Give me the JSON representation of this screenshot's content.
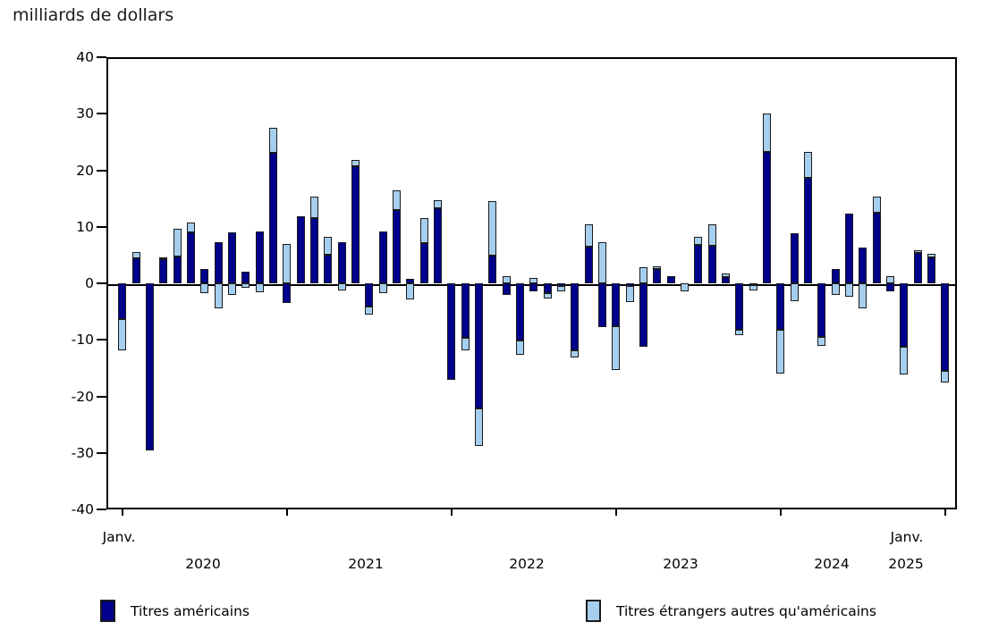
{
  "title": "milliards de dollars",
  "y_axis": {
    "ticks": [
      "40",
      "30",
      "20",
      "10",
      "0",
      "-10",
      "-20",
      "-30",
      "-40"
    ]
  },
  "x_axis": {
    "first_label": "Janv.",
    "last_label": "Janv.",
    "last_year": "2025",
    "years": [
      "2020",
      "2021",
      "2022",
      "2023",
      "2024"
    ]
  },
  "legend": [
    {
      "label": "Titres américains",
      "color": "#00008b"
    },
    {
      "label": "Titres étrangers autres qu'américains",
      "color": "#a6cfef"
    }
  ],
  "chart_data": {
    "type": "bar",
    "stacked": true,
    "title": "milliards de dollars",
    "ylabel": "milliards de dollars",
    "ylim": [
      -40,
      40
    ],
    "ytick_step": 10,
    "grid": false,
    "legend_position": "bottom",
    "categories": [
      "2020-01",
      "2020-02",
      "2020-03",
      "2020-04",
      "2020-05",
      "2020-06",
      "2020-07",
      "2020-08",
      "2020-09",
      "2020-10",
      "2020-11",
      "2020-12",
      "2021-01",
      "2021-02",
      "2021-03",
      "2021-04",
      "2021-05",
      "2021-06",
      "2021-07",
      "2021-08",
      "2021-09",
      "2021-10",
      "2021-11",
      "2021-12",
      "2022-01",
      "2022-02",
      "2022-03",
      "2022-04",
      "2022-05",
      "2022-06",
      "2022-07",
      "2022-08",
      "2022-09",
      "2022-10",
      "2022-11",
      "2022-12",
      "2023-01",
      "2023-02",
      "2023-03",
      "2023-04",
      "2023-05",
      "2023-06",
      "2023-07",
      "2023-08",
      "2023-09",
      "2023-10",
      "2023-11",
      "2023-12",
      "2024-01",
      "2024-02",
      "2024-03",
      "2024-04",
      "2024-05",
      "2024-06",
      "2024-07",
      "2024-08",
      "2024-09",
      "2024-10",
      "2024-11",
      "2024-12",
      "2025-01"
    ],
    "series": [
      {
        "name": "Titres américains",
        "color": "#00008b",
        "values": [
          -6.3,
          4.4,
          -29.5,
          4.2,
          4.7,
          9.0,
          2.6,
          7.3,
          9.0,
          2.1,
          9.2,
          23.1,
          -3.5,
          11.8,
          11.6,
          5.0,
          7.3,
          20.7,
          -4.1,
          9.2,
          12.9,
          0.8,
          7.1,
          13.3,
          -17.1,
          -9.7,
          -22.2,
          4.9,
          -2.1,
          -10.1,
          -1.5,
          -1.7,
          -0.5,
          -11.9,
          6.5,
          -7.8,
          -7.6,
          -0.5,
          -11.3,
          2.5,
          1.3,
          0.0,
          6.8,
          6.6,
          1.1,
          -8.2,
          -0.3,
          23.3,
          -8.3,
          8.9,
          18.7,
          -9.5,
          2.5,
          12.4,
          6.3,
          12.5,
          -1.5,
          -11.3,
          5.4,
          4.6,
          -15.5
        ]
      },
      {
        "name": "Titres étrangers autres qu'américains",
        "color": "#a6cfef",
        "values": [
          -5.5,
          1.2,
          0.0,
          0.4,
          4.9,
          1.8,
          -1.8,
          -4.4,
          -2.1,
          -0.8,
          -1.6,
          4.4,
          6.9,
          0.0,
          3.8,
          3.2,
          -1.3,
          1.1,
          -1.4,
          -1.7,
          3.6,
          -2.9,
          4.4,
          1.4,
          0.0,
          -2.2,
          -6.6,
          9.7,
          1.3,
          -2.5,
          0.9,
          -1.0,
          -1.0,
          -1.2,
          4.0,
          7.2,
          -7.8,
          -2.9,
          2.8,
          0.5,
          0.0,
          -1.4,
          1.5,
          3.8,
          0.7,
          -1.0,
          -1.0,
          6.7,
          -7.6,
          -3.2,
          4.6,
          -1.6,
          -2.1,
          -2.4,
          -4.5,
          2.9,
          1.2,
          -4.8,
          0.4,
          0.6,
          -2.1
        ]
      }
    ]
  }
}
